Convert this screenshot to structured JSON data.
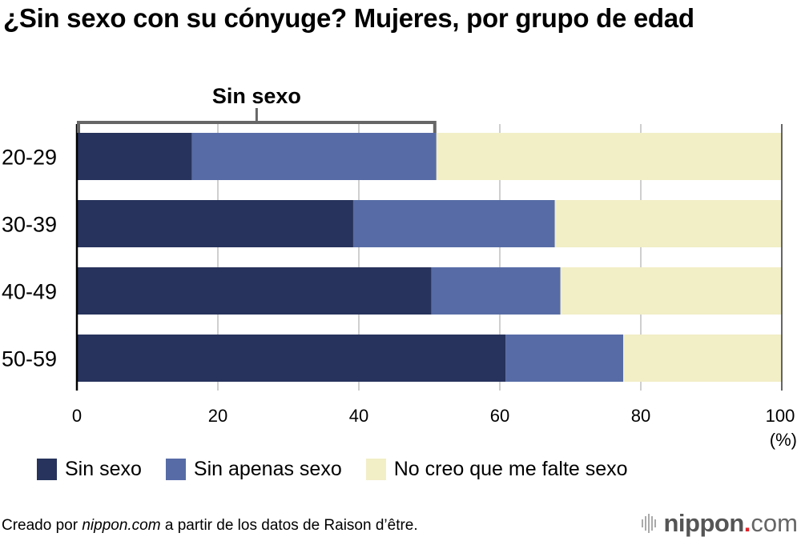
{
  "title": "¿Sin sexo con su cónyuge? Mujeres, por grupo de edad",
  "footer": {
    "prefix": "Creado por ",
    "italic": "nippon.com",
    "suffix": " a partir de los datos de Raison d’être."
  },
  "logo": {
    "brand": "nippon",
    "dot": ".",
    "tld": "com",
    "dot_color": "#e0242a"
  },
  "chart_data": {
    "type": "bar",
    "orientation": "horizontal",
    "stacked": true,
    "title": "¿Sin sexo con su cónyuge? Mujeres, por grupo de edad",
    "xlabel": "(%)",
    "ylabel": "",
    "xlim": [
      0,
      100
    ],
    "x_ticks": [
      0,
      20,
      40,
      60,
      80,
      100
    ],
    "grid": true,
    "categories": [
      "20-29",
      "30-39",
      "40-49",
      "50-59"
    ],
    "series": [
      {
        "name": "Sin sexo",
        "color": "#27335c",
        "values": [
          16.3,
          39.2,
          50.3,
          60.8
        ]
      },
      {
        "name": "Sin apenas sexo",
        "color": "#576ca6",
        "values": [
          34.7,
          28.6,
          18.3,
          16.7
        ]
      },
      {
        "name": "No creo que me falte sexo",
        "color": "#f2eec6",
        "values": [
          49.0,
          32.2,
          31.4,
          22.5
        ]
      }
    ],
    "annotation": {
      "label": "Sin sexo",
      "bracket_range": [
        0,
        51.0
      ],
      "applies_to": "20-29"
    },
    "legend_position": "bottom"
  }
}
